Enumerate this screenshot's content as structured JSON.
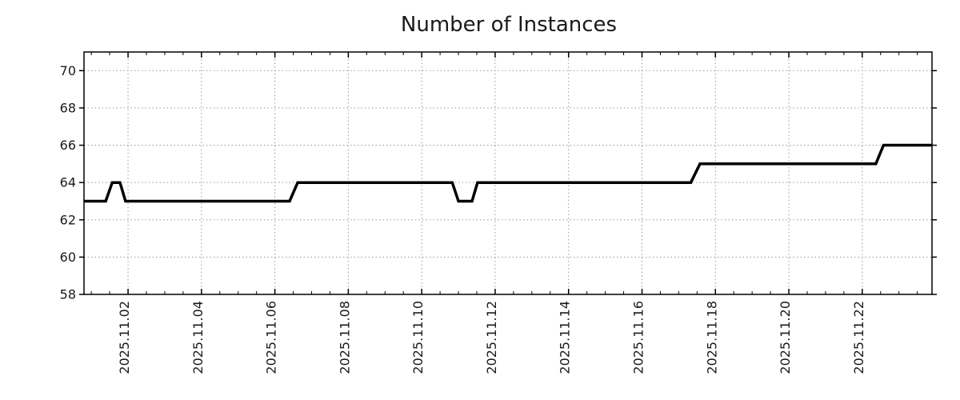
{
  "chart_data": {
    "type": "line",
    "title": "Number of Instances",
    "x_axis": {
      "unit": "date",
      "tick_labels": [
        "2025.11.02",
        "2025.11.04",
        "2025.11.06",
        "2025.11.08",
        "2025.11.10",
        "2025.11.12",
        "2025.11.14",
        "2025.11.16",
        "2025.11.18",
        "2025.11.20",
        "2025.11.22"
      ],
      "tick_days": [
        2,
        4,
        6,
        8,
        10,
        12,
        14,
        16,
        18,
        20,
        22
      ],
      "minor_tick_step_days": 0.5,
      "domain_days": [
        0.8,
        23.9
      ],
      "label_rotation_deg": -90
    },
    "y_axis": {
      "tick_labels": [
        "58",
        "60",
        "62",
        "64",
        "66",
        "68",
        "70"
      ],
      "ticks": [
        58,
        60,
        62,
        64,
        66,
        68,
        70
      ],
      "domain": [
        58,
        71
      ]
    },
    "grid": "dotted-major-both-axes",
    "legend": "none",
    "series": [
      {
        "name": "instances",
        "points": [
          [
            0.8,
            63
          ],
          [
            1.39,
            63
          ],
          [
            1.57,
            64
          ],
          [
            1.78,
            64
          ],
          [
            1.93,
            63
          ],
          [
            6.4,
            63
          ],
          [
            6.62,
            64
          ],
          [
            10.83,
            64
          ],
          [
            11.0,
            63
          ],
          [
            11.37,
            63
          ],
          [
            11.52,
            64
          ],
          [
            17.33,
            64
          ],
          [
            17.58,
            65
          ],
          [
            22.37,
            65
          ],
          [
            22.58,
            66
          ],
          [
            23.9,
            66
          ]
        ]
      }
    ],
    "colors": {
      "line": "#000000",
      "grid": "#9a9a9a",
      "frame": "#000000",
      "text": "#1a1a1a",
      "background": "#ffffff"
    }
  }
}
